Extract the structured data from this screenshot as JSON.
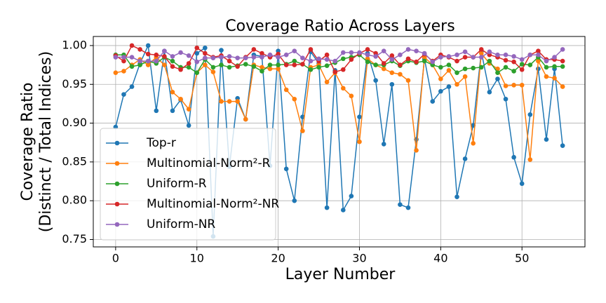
{
  "chart_data": {
    "type": "line",
    "title": "Coverage Ratio Across Layers",
    "xlabel": "Layer Number",
    "ylabel": [
      "Coverage Ratio",
      "(Distinct / Total Indices)"
    ],
    "x": [
      0,
      1,
      2,
      3,
      4,
      5,
      6,
      7,
      8,
      9,
      10,
      11,
      12,
      13,
      14,
      15,
      16,
      17,
      18,
      19,
      20,
      21,
      22,
      23,
      24,
      25,
      26,
      27,
      28,
      29,
      30,
      31,
      32,
      33,
      34,
      35,
      36,
      37,
      38,
      39,
      40,
      41,
      42,
      43,
      44,
      45,
      46,
      47,
      48,
      49,
      50,
      51,
      52,
      53,
      54,
      55
    ],
    "xlim": [
      -2.75,
      57.75
    ],
    "xticks": [
      0,
      10,
      20,
      30,
      40,
      50
    ],
    "ylim": [
      0.7405,
      1.0117
    ],
    "yticks": [
      {
        "value": 0.75,
        "label": "0.75"
      },
      {
        "value": 0.8,
        "label": "0.80"
      },
      0.85,
      {
        "value": 0.9,
        "label": "0.90"
      },
      0.95,
      {
        "value": 1.0,
        "label": "1.00"
      }
    ],
    "grid": true,
    "legend": "lower left",
    "series": [
      {
        "name": "Top-r",
        "color": "#1f77b4",
        "values": [
          0.895,
          0.937,
          0.947,
          0.977,
          1.0,
          0.916,
          0.993,
          0.916,
          0.93,
          0.897,
          0.99,
          0.997,
          0.754,
          0.994,
          0.844,
          0.932,
          0.905,
          0.988,
          0.986,
          0.845,
          0.993,
          0.841,
          0.8,
          0.908,
          0.992,
          0.977,
          0.791,
          0.968,
          0.788,
          0.806,
          0.908,
          0.99,
          0.955,
          0.873,
          0.95,
          0.795,
          0.791,
          0.879,
          0.983,
          0.928,
          0.941,
          0.947,
          0.805,
          0.854,
          0.897,
          0.992,
          0.94,
          0.957,
          0.931,
          0.856,
          0.822,
          0.911,
          0.97,
          0.879,
          0.97,
          0.871
        ]
      },
      {
        "name": "Multinomial-Norm²-R",
        "color": "#ff7f0e",
        "values": [
          0.965,
          0.967,
          0.975,
          0.982,
          0.975,
          0.985,
          0.975,
          0.94,
          0.931,
          0.918,
          0.965,
          0.975,
          0.966,
          0.928,
          0.928,
          0.928,
          0.905,
          0.975,
          0.972,
          0.97,
          0.97,
          0.943,
          0.931,
          0.89,
          0.972,
          0.975,
          0.953,
          0.965,
          0.945,
          0.935,
          0.876,
          0.983,
          0.975,
          0.97,
          0.965,
          0.963,
          0.955,
          0.865,
          0.985,
          0.975,
          0.957,
          0.968,
          0.95,
          0.96,
          0.874,
          0.99,
          0.977,
          0.97,
          0.948,
          0.949,
          0.949,
          0.853,
          0.98,
          0.96,
          0.958,
          0.947
        ]
      },
      {
        "name": "Uniform-R",
        "color": "#2ca02c",
        "values": [
          0.988,
          0.988,
          0.973,
          0.975,
          0.98,
          0.977,
          0.985,
          0.98,
          0.972,
          0.972,
          0.965,
          0.982,
          0.972,
          0.975,
          0.972,
          0.974,
          0.976,
          0.973,
          0.967,
          0.975,
          0.975,
          0.976,
          0.98,
          0.976,
          0.969,
          0.972,
          0.974,
          0.978,
          0.983,
          0.985,
          0.988,
          0.979,
          0.975,
          0.975,
          0.98,
          0.974,
          0.98,
          0.978,
          0.98,
          0.975,
          0.972,
          0.975,
          0.965,
          0.97,
          0.971,
          0.972,
          0.98,
          0.965,
          0.972,
          0.967,
          0.976,
          0.975,
          0.985,
          0.972,
          0.973,
          0.973
        ]
      },
      {
        "name": "Multinomial-Norm²-NR",
        "color": "#d62728",
        "values": [
          0.987,
          0.98,
          1.0,
          0.995,
          0.989,
          0.988,
          0.986,
          0.973,
          0.969,
          0.977,
          0.997,
          0.99,
          0.985,
          0.987,
          0.98,
          0.973,
          0.985,
          0.995,
          0.99,
          0.985,
          0.989,
          0.975,
          0.975,
          0.976,
          0.995,
          0.98,
          0.988,
          0.966,
          0.969,
          0.982,
          0.99,
          0.995,
          0.99,
          0.977,
          0.987,
          0.975,
          0.983,
          0.979,
          0.989,
          0.98,
          0.988,
          0.985,
          0.98,
          0.985,
          0.985,
          0.995,
          0.988,
          0.985,
          0.981,
          0.979,
          0.969,
          0.988,
          0.993,
          0.982,
          0.982,
          0.98
        ]
      },
      {
        "name": "Uniform-NR",
        "color": "#9467bd",
        "values": [
          0.985,
          0.985,
          0.985,
          0.98,
          0.98,
          0.98,
          0.993,
          0.986,
          0.991,
          0.987,
          0.979,
          0.984,
          0.984,
          0.985,
          0.986,
          0.984,
          0.984,
          0.985,
          0.985,
          0.988,
          0.985,
          0.988,
          0.993,
          0.984,
          0.98,
          0.983,
          0.982,
          0.98,
          0.991,
          0.991,
          0.991,
          0.988,
          0.986,
          0.993,
          0.982,
          0.988,
          0.995,
          0.993,
          0.99,
          0.979,
          0.985,
          0.986,
          0.988,
          0.992,
          0.985,
          0.985,
          0.992,
          0.988,
          0.988,
          0.986,
          0.982,
          0.988,
          0.988,
          0.98,
          0.985,
          0.995
        ]
      }
    ]
  }
}
